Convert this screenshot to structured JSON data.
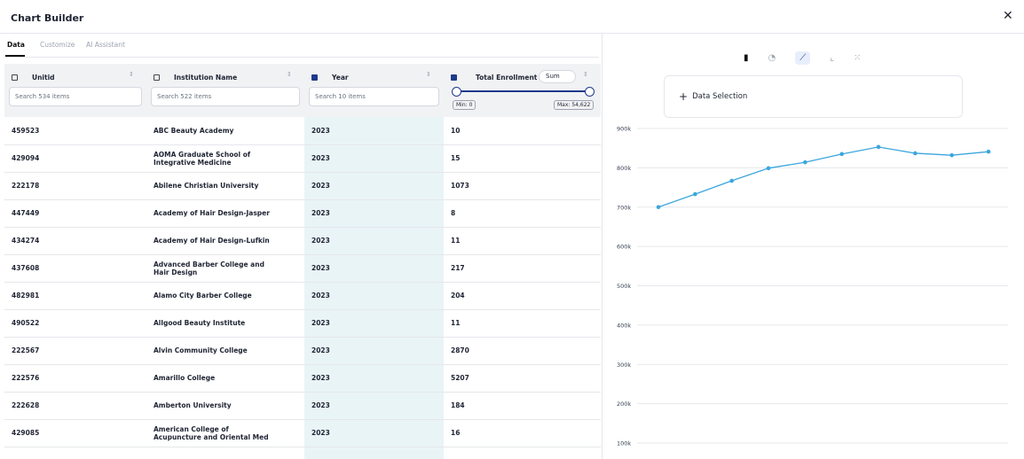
{
  "header": {
    "title": "Chart Builder"
  },
  "tabs": [
    "Data",
    "Customize",
    "AI Assistant"
  ],
  "table": {
    "columns": [
      {
        "name": "Unitid",
        "checked": false
      },
      {
        "name": "Institution Name",
        "checked": false
      },
      {
        "name": "Year",
        "checked": true
      },
      {
        "name": "Total Enrollment",
        "checked": true
      }
    ],
    "filters": [
      "Search 534 items",
      "Search 522 items",
      "Search 10 items"
    ],
    "aggregate": "Sum",
    "range": {
      "min": "Min: 0",
      "max": "Max: 54,622"
    },
    "rows": [
      [
        "459523",
        "ABC Beauty Academy",
        "2023",
        "10"
      ],
      [
        "429094",
        "AOMA Graduate School of Integrative Medicine",
        "2023",
        "15"
      ],
      [
        "222178",
        "Abilene Christian University",
        "2023",
        "1073"
      ],
      [
        "447449",
        "Academy of Hair Design-Jasper",
        "2023",
        "8"
      ],
      [
        "434274",
        "Academy of Hair Design-Lufkin",
        "2023",
        "11"
      ],
      [
        "437608",
        "Advanced Barber College and Hair Design",
        "2023",
        "217"
      ],
      [
        "482981",
        "Alamo City Barber College",
        "2023",
        "204"
      ],
      [
        "490522",
        "Allgood Beauty Institute",
        "2023",
        "11"
      ],
      [
        "222567",
        "Alvin Community College",
        "2023",
        "2870"
      ],
      [
        "222576",
        "Amarillo College",
        "2023",
        "5207"
      ],
      [
        "222628",
        "Amberton University",
        "2023",
        "184"
      ],
      [
        "429085",
        "American College of Acupuncture and Oriental Med",
        "2023",
        "16"
      ]
    ]
  },
  "data_selection": "Data Selection",
  "chart": {
    "type": "line",
    "categories": [
      null,
      null,
      null,
      null,
      null,
      null,
      null,
      null,
      null,
      null
    ],
    "series": [
      {
        "color": "#3ba6de",
        "values": [
          700000,
          733000,
          767000,
          799000,
          814000,
          835000,
          853000,
          837000,
          832000,
          841000
        ]
      }
    ],
    "ylim": [
      100000,
      900000
    ],
    "yticks": [
      {
        "value": 100000,
        "label": "100k"
      },
      {
        "value": 200000,
        "label": "200k"
      },
      {
        "value": 300000,
        "label": "300k"
      },
      {
        "value": 400000,
        "label": "400k"
      },
      {
        "value": 500000,
        "label": "500k"
      },
      {
        "value": 600000,
        "label": "600k"
      },
      {
        "value": 700000,
        "label": "700k"
      },
      {
        "value": 800000,
        "label": "800k"
      },
      {
        "value": 900000,
        "label": "900k"
      }
    ],
    "grid": true
  }
}
